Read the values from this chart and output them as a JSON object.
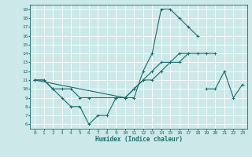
{
  "xlabel": "Humidex (Indice chaleur)",
  "ylabel": "",
  "bg_color": "#cce8e8",
  "grid_color": "#ffffff",
  "line_color": "#1a6b6b",
  "xlim": [
    -0.5,
    23.5
  ],
  "ylim": [
    5.5,
    19.5
  ],
  "xticks": [
    0,
    1,
    2,
    3,
    4,
    5,
    6,
    7,
    8,
    9,
    10,
    11,
    12,
    13,
    14,
    15,
    16,
    17,
    18,
    19,
    20,
    21,
    22,
    23
  ],
  "yticks": [
    6,
    7,
    8,
    9,
    10,
    11,
    12,
    13,
    14,
    15,
    16,
    17,
    18,
    19
  ],
  "lines": [
    {
      "x": [
        0,
        1,
        2,
        3,
        4,
        5,
        6,
        7,
        8,
        9,
        10,
        11,
        12,
        13,
        14,
        15,
        16,
        17,
        18
      ],
      "y": [
        11,
        11,
        10,
        9,
        8,
        8,
        6,
        7,
        7,
        9,
        9,
        9,
        12,
        14,
        19,
        19,
        18,
        17,
        16
      ]
    },
    {
      "x": [
        0,
        1,
        2,
        3,
        4,
        5,
        6,
        9,
        10,
        11,
        12,
        13,
        14,
        15,
        16,
        17,
        18,
        19,
        20
      ],
      "y": [
        11,
        11,
        10,
        10,
        10,
        9,
        9,
        9,
        9,
        10,
        11,
        12,
        13,
        13,
        14,
        14,
        14,
        14,
        14
      ]
    },
    {
      "x": [
        0,
        10,
        11,
        12,
        13,
        14,
        15,
        16,
        17
      ],
      "y": [
        11,
        9,
        10,
        11,
        11,
        12,
        13,
        13,
        14
      ]
    },
    {
      "x": [
        19,
        20,
        21,
        22,
        23
      ],
      "y": [
        10,
        10,
        12,
        9,
        10.5
      ]
    }
  ]
}
